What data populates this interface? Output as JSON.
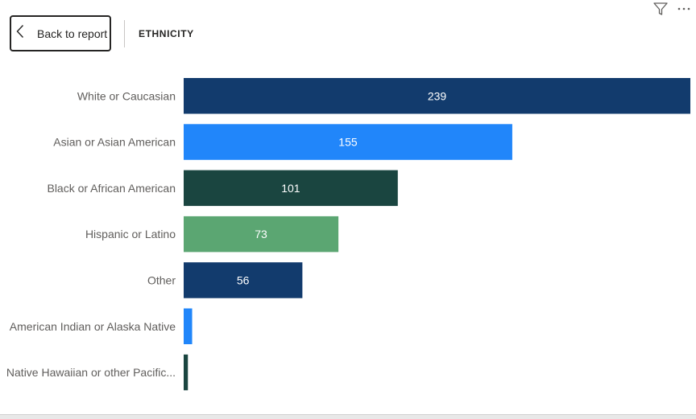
{
  "header": {
    "back_label": "Back to report",
    "title": "ETHNICITY"
  },
  "icons": {
    "filter": "filter-icon",
    "more": "more-options-icon",
    "back": "chevron-left-icon"
  },
  "chart_data": {
    "type": "bar",
    "orientation": "horizontal",
    "categories": [
      "White or Caucasian",
      "Asian or Asian American",
      "Black or African American",
      "Hispanic or Latino",
      "Other",
      "American Indian or Alaska Native",
      "Native Hawaiian or other Pacific..."
    ],
    "values": [
      239,
      155,
      101,
      73,
      56,
      4,
      2
    ],
    "data_labels": [
      "239",
      "155",
      "101",
      "73",
      "56",
      "",
      ""
    ],
    "colors": [
      "#123B6D",
      "#2186FA",
      "#1A4540",
      "#5BA672",
      "#123B6D",
      "#2186FA",
      "#1A4540"
    ],
    "label_color": "#ffffff",
    "xlim": [
      0,
      239
    ],
    "grid": false,
    "legend": "none"
  }
}
